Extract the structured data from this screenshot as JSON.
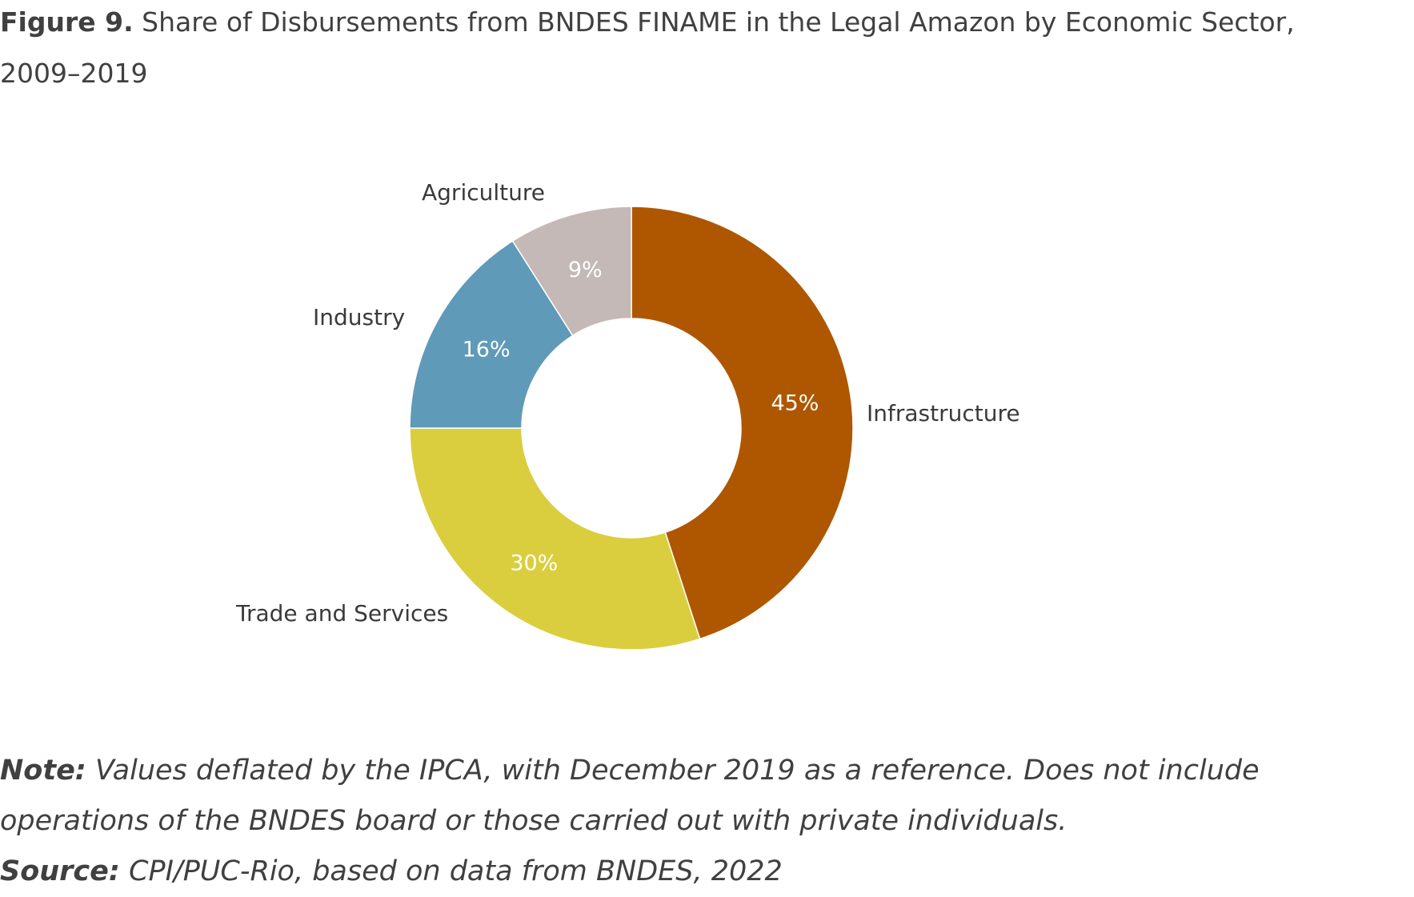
{
  "title": {
    "label": "Figure 9.",
    "text": "Share of Disbursements from BNDES FINAME in the Legal Amazon by Economic Sector, 2009–2019"
  },
  "chart_data": {
    "type": "pie",
    "variant": "donut",
    "categories": [
      "Infrastructure",
      "Trade and Services",
      "Industry",
      "Agriculture"
    ],
    "values": [
      45,
      30,
      16,
      9
    ],
    "value_labels": [
      "45%",
      "30%",
      "16%",
      "9%"
    ],
    "colors": [
      "#AE5700",
      "#DACE3E",
      "#5F9AB9",
      "#C4B9B6"
    ],
    "start": "12 o'clock, clockwise",
    "legend": "none (category labels beside slices)"
  },
  "notes": {
    "note_lead": "Note:",
    "note_text": " Values deflated by the IPCA, with December 2019 as a reference. Does not include operations of the BNDES board or those carried out with private individuals.",
    "source_lead": "Source:",
    "source_text": " CPI/PUC-Rio, based on data from BNDES, 2022"
  }
}
